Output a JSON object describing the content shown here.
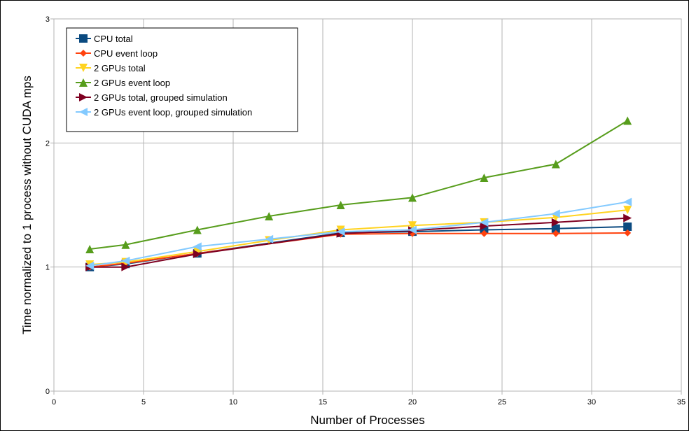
{
  "chart_data": {
    "type": "line",
    "xlabel": "Number of Processes",
    "ylabel": "Time normalized to 1 process without CUDA mps",
    "xlim": [
      0,
      35
    ],
    "ylim": [
      0,
      3
    ],
    "xticks": [
      0,
      5,
      10,
      15,
      20,
      25,
      30,
      35
    ],
    "yticks": [
      0,
      1,
      2,
      3
    ],
    "grid": true,
    "legend_position": "top-left",
    "series": [
      {
        "name": "CPU total",
        "color": "#0b4a80",
        "marker": "square",
        "points": [
          [
            2,
            1.0
          ],
          [
            4,
            1.025
          ],
          [
            8,
            1.11
          ],
          [
            16,
            1.275
          ],
          [
            20,
            1.285
          ],
          [
            24,
            1.3
          ],
          [
            28,
            1.31
          ],
          [
            32,
            1.325
          ]
        ]
      },
      {
        "name": "CPU event loop",
        "color": "#ff420e",
        "marker": "diamond",
        "points": [
          [
            2,
            1.0
          ],
          [
            4,
            1.03
          ],
          [
            8,
            1.11
          ],
          [
            16,
            1.265
          ],
          [
            20,
            1.27
          ],
          [
            24,
            1.27
          ],
          [
            28,
            1.27
          ],
          [
            32,
            1.275
          ]
        ]
      },
      {
        "name": "2 GPUs total",
        "color": "#ffd320",
        "marker": "triangle-down",
        "points": [
          [
            2,
            1.02
          ],
          [
            4,
            1.04
          ],
          [
            8,
            1.125
          ],
          [
            12,
            1.215
          ],
          [
            16,
            1.3
          ],
          [
            20,
            1.335
          ],
          [
            24,
            1.36
          ],
          [
            28,
            1.4
          ],
          [
            32,
            1.46
          ]
        ]
      },
      {
        "name": "2 GPUs event loop",
        "color": "#579d1c",
        "marker": "triangle-up",
        "points": [
          [
            2,
            1.145
          ],
          [
            4,
            1.18
          ],
          [
            8,
            1.3
          ],
          [
            12,
            1.41
          ],
          [
            16,
            1.5
          ],
          [
            20,
            1.56
          ],
          [
            24,
            1.72
          ],
          [
            28,
            1.83
          ],
          [
            32,
            2.18
          ]
        ]
      },
      {
        "name": "2 GPUs total, grouped simulation",
        "color": "#7e0021",
        "marker": "triangle-right",
        "points": [
          [
            2,
            1.0
          ],
          [
            4,
            1.0
          ],
          [
            8,
            1.105
          ],
          [
            16,
            1.27
          ],
          [
            20,
            1.295
          ],
          [
            24,
            1.33
          ],
          [
            28,
            1.36
          ],
          [
            32,
            1.395
          ]
        ]
      },
      {
        "name": "2 GPUs event loop, grouped simulation",
        "color": "#83caff",
        "marker": "triangle-left",
        "points": [
          [
            2,
            1.01
          ],
          [
            4,
            1.05
          ],
          [
            8,
            1.165
          ],
          [
            12,
            1.225
          ],
          [
            16,
            1.285
          ],
          [
            20,
            1.3
          ],
          [
            24,
            1.36
          ],
          [
            28,
            1.43
          ],
          [
            32,
            1.525
          ]
        ]
      }
    ]
  }
}
